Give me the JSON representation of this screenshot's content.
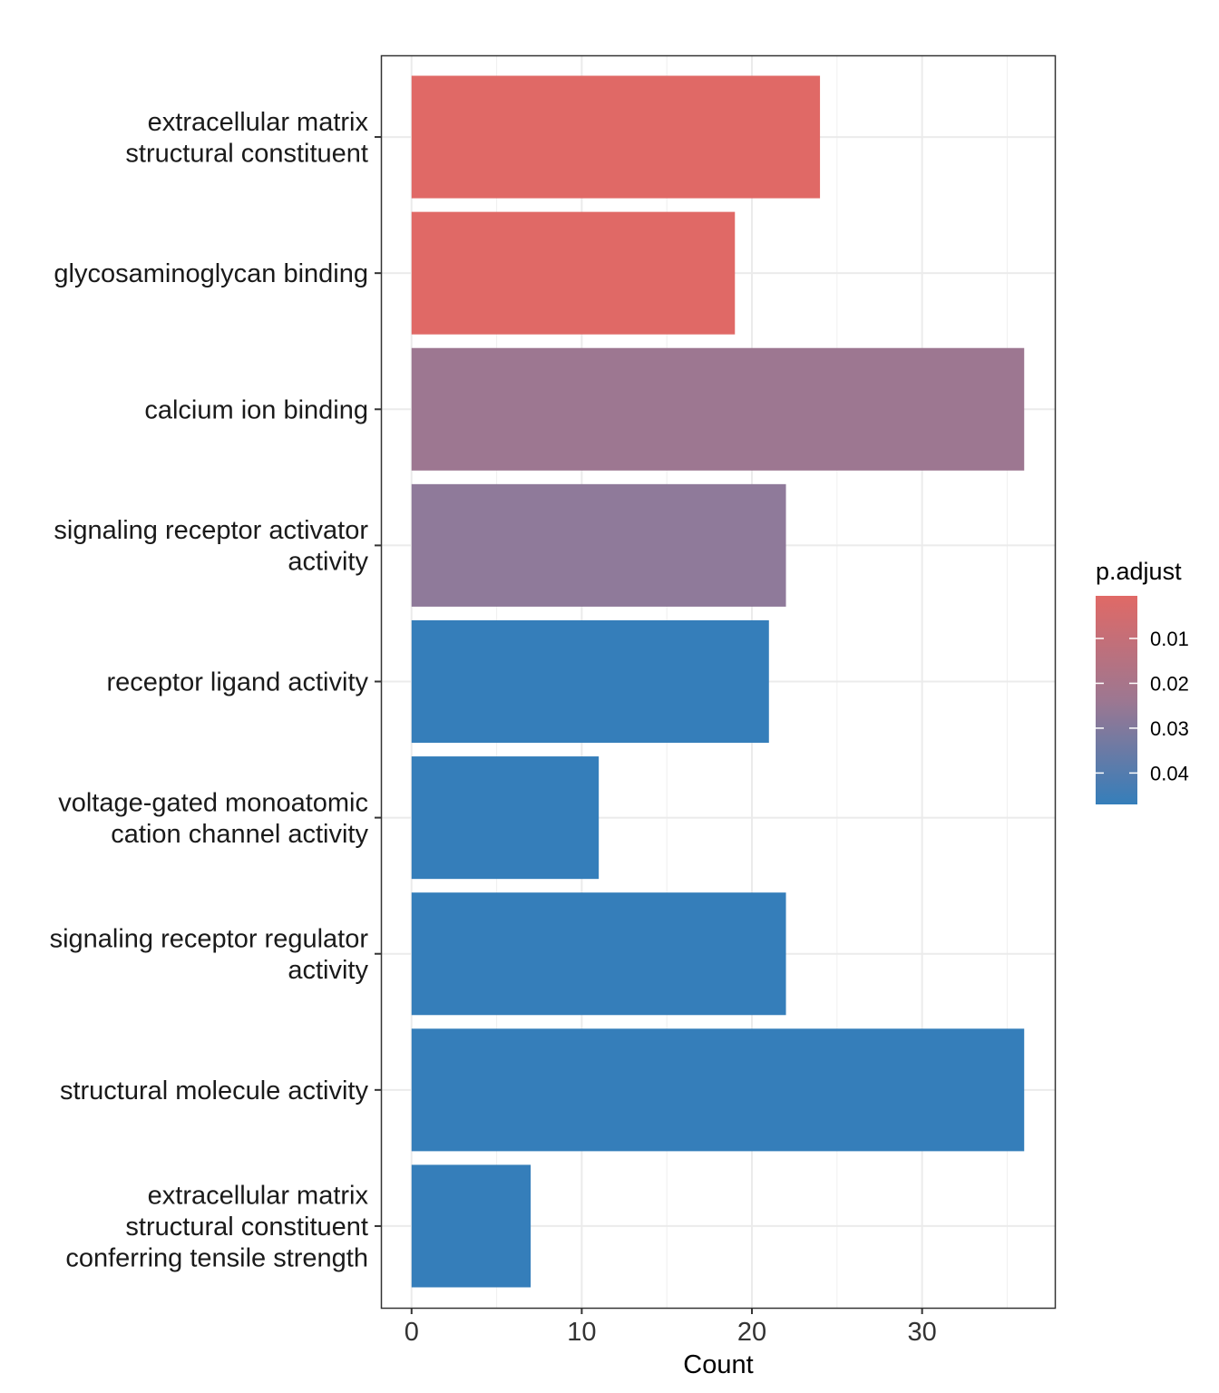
{
  "chart_data": {
    "type": "bar",
    "orientation": "horizontal",
    "title": "",
    "xlabel": "Count",
    "ylabel": "",
    "xlim": [
      -1.8,
      37.8
    ],
    "x_ticks": [
      0,
      10,
      20,
      30
    ],
    "x_tick_labels": [
      "0",
      "10",
      "20",
      "30"
    ],
    "grid": true,
    "categories": [
      "extracellular matrix\nstructural constituent",
      "glycosaminoglycan binding",
      "calcium ion binding",
      "signaling receptor activator\nactivity",
      "receptor ligand activity",
      "voltage-gated monoatomic\ncation channel activity",
      "signaling receptor regulator\nactivity",
      "structural molecule activity",
      "extracellular matrix\nstructural constituent\nconferring tensile strength"
    ],
    "values": [
      24,
      19,
      36,
      22,
      21,
      11,
      22,
      36,
      7
    ],
    "p_adjust": [
      0.0005,
      0.0008,
      0.026,
      0.03,
      0.047,
      0.047,
      0.047,
      0.047,
      0.047
    ],
    "colors": [
      "#E06966",
      "#E06966",
      "#9D7791",
      "#8F7A9A",
      "#357EBA",
      "#357EBA",
      "#357EBA",
      "#357EBA",
      "#357EBA"
    ],
    "legend": {
      "title": "p.adjust",
      "position": "right",
      "ticks": [
        0.01,
        0.02,
        0.03,
        0.04
      ],
      "tick_labels": [
        "0.01",
        "0.02",
        "0.03",
        "0.04"
      ],
      "range": [
        0.0005,
        0.047
      ],
      "color_low": "#E06966",
      "color_high": "#357EBA"
    }
  }
}
